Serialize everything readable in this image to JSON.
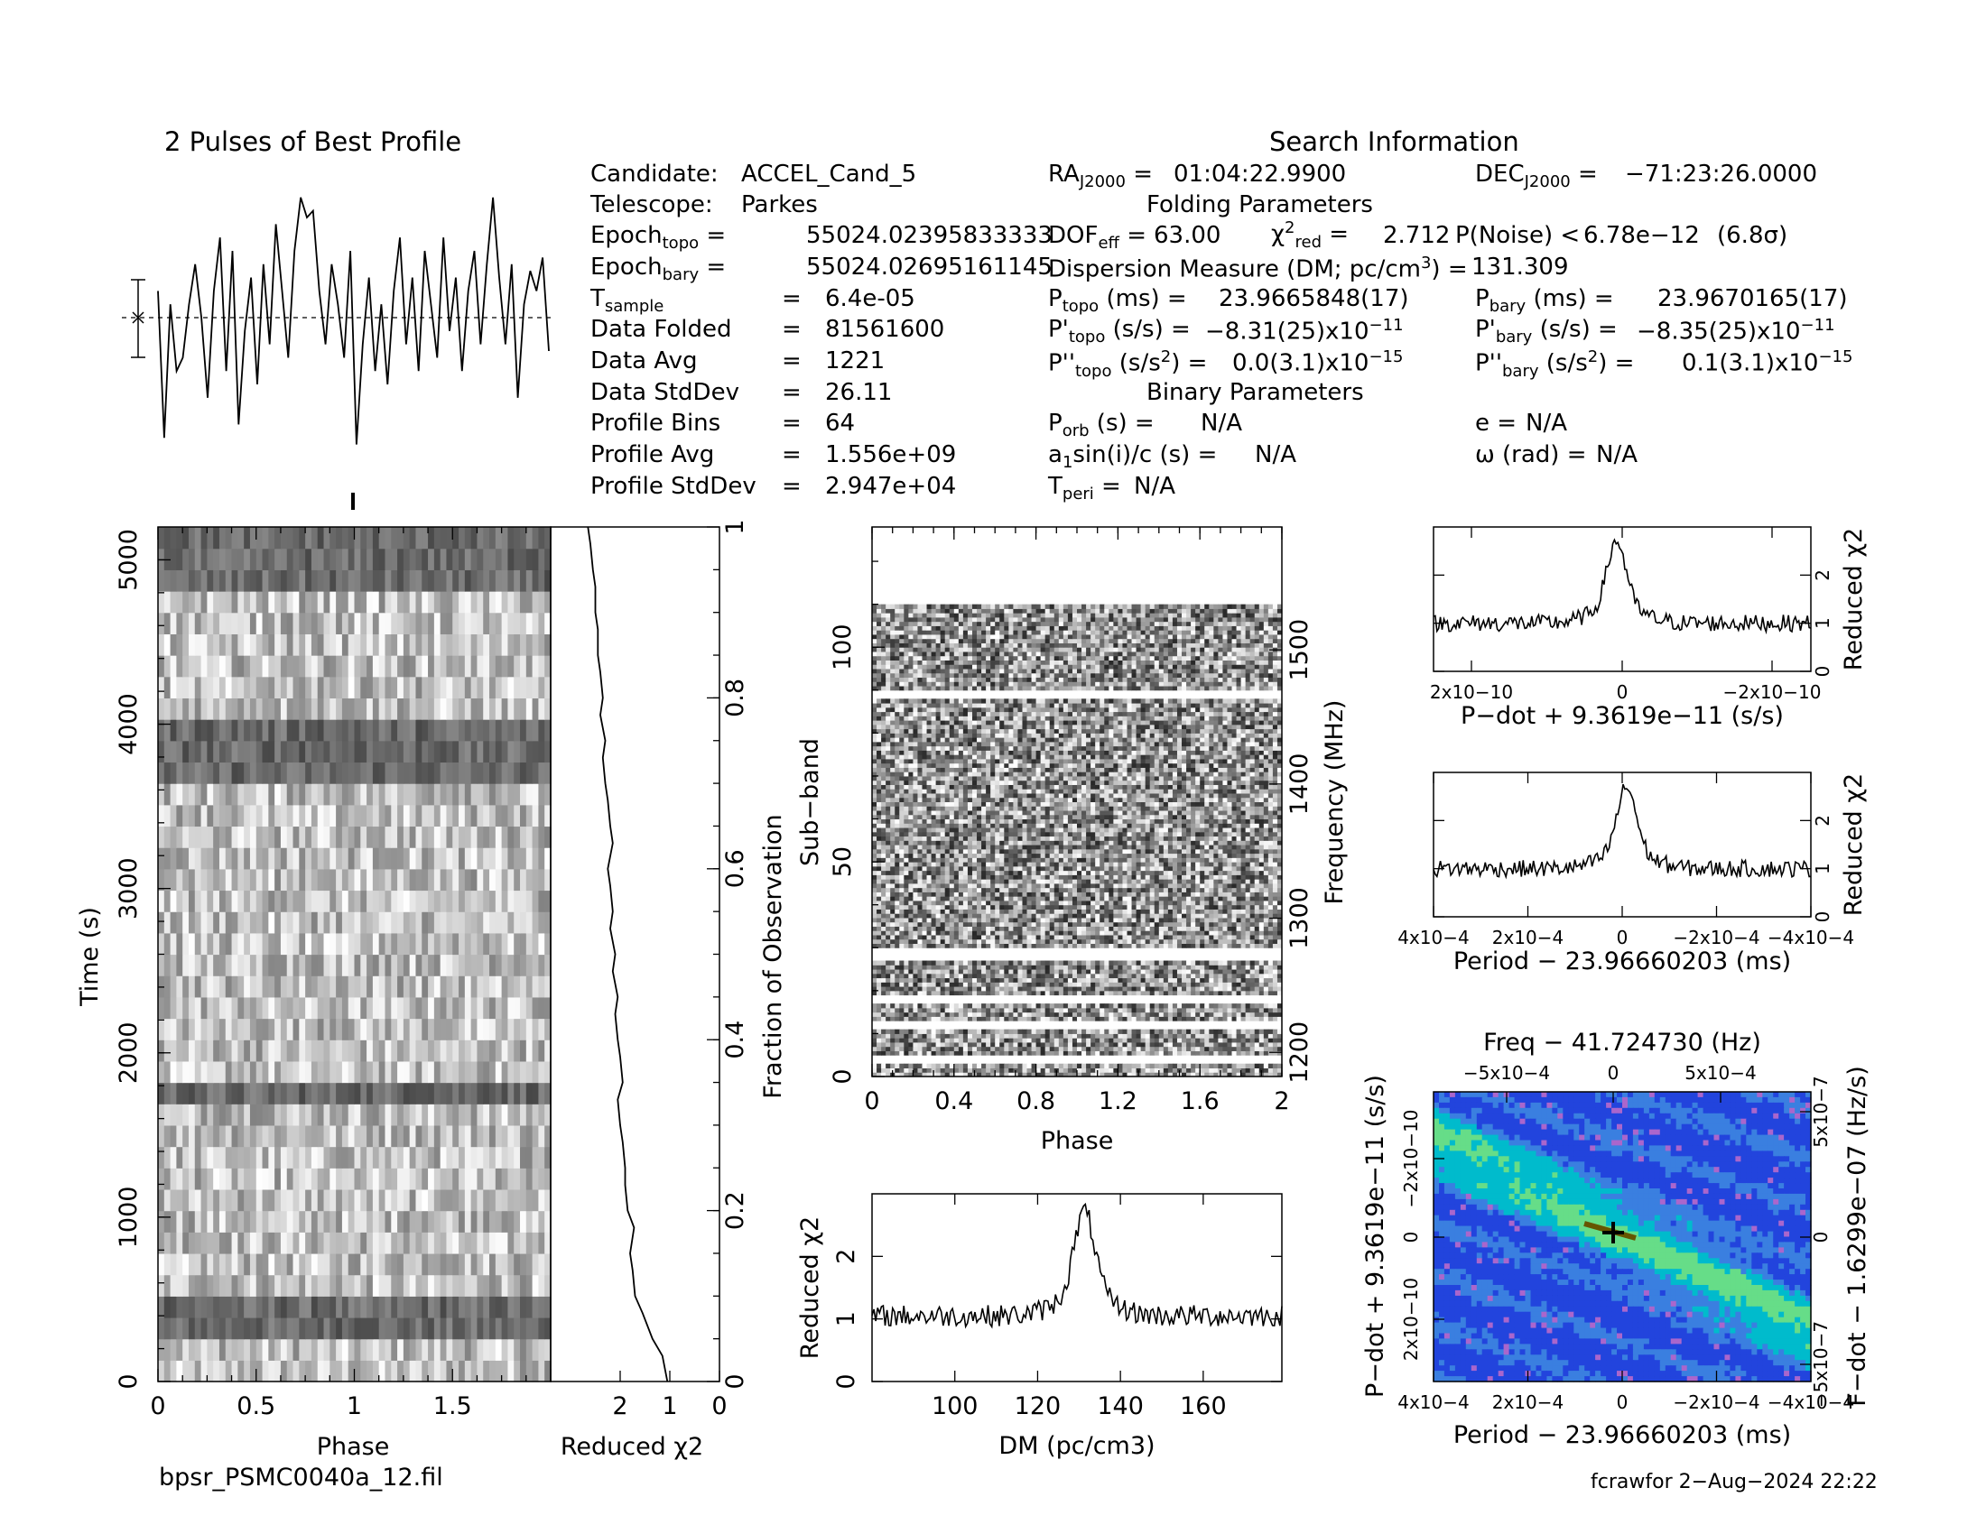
{
  "header": {
    "profile_title": "2 Pulses of Best Profile",
    "search_title": "Search Information",
    "folding_title": "Folding Parameters",
    "binary_title": "Binary Parameters"
  },
  "info": {
    "candidate_label": "Candidate:",
    "candidate": "ACCEL_Cand_5",
    "telescope_label": "Telescope:",
    "telescope": "Parkes",
    "epoch_topo": "55024.02395833333",
    "epoch_bary": "55024.02695161145",
    "tsample": "6.4e-05",
    "data_folded": "81561600",
    "data_avg": "1221",
    "data_stddev": "26.11",
    "profile_bins": "64",
    "profile_avg": "1.556e+09",
    "profile_stddev": "2.947e+04",
    "ra": "01:04:22.9900",
    "dec": "−71:23:26.0000",
    "dof_eff": "63.00",
    "chi2_red": "2.712",
    "p_noise": "6.78e−12",
    "sigma": "(6.8σ)",
    "dm": "131.309",
    "p_topo": "23.9665848(17)",
    "p_bary": "23.9670165(17)",
    "pd_topo": "−8.31(25)x10",
    "pd_topo_exp": "−11",
    "pd_bary": "−8.35(25)x10",
    "pd_bary_exp": "−11",
    "pdd_topo": "0.0(3.1)x10",
    "pdd_topo_exp": "−15",
    "pdd_bary": "0.1(3.1)x10",
    "pdd_bary_exp": "−15",
    "p_orb": "N/A",
    "e": "N/A",
    "a1sini": "N/A",
    "omega": "N/A",
    "t_peri": "N/A"
  },
  "footer": {
    "filename": "bpsr_PSMC0040a_12.fil",
    "user_date": "fcrawfor  2−Aug−2024 22:22"
  },
  "colors": {
    "ink": "#000000",
    "ppdot_low": "#2244dd",
    "ppdot_mid": "#00bbcc",
    "ppdot_high": "#66dd88",
    "ppdot_peak": "#665500"
  },
  "chart_data": [
    {
      "id": "profile",
      "type": "line",
      "title": "2 Pulses of Best Profile",
      "x": "phase 0–2 (64 bins, 2 pulses)",
      "values": [
        0.2,
        -0.9,
        0.1,
        -0.4,
        -0.3,
        0.1,
        0.4,
        0.0,
        -0.6,
        0.2,
        0.6,
        -0.4,
        0.5,
        -0.8,
        -0.1,
        0.3,
        -0.5,
        0.4,
        -0.2,
        0.7,
        0.2,
        -0.3,
        0.5,
        0.9,
        0.75,
        0.8,
        0.2,
        -0.2,
        0.4,
        0.1,
        -0.3,
        0.5,
        -0.95,
        -0.2,
        0.3,
        -0.4,
        0.1,
        -0.5,
        0.2,
        0.6,
        -0.2,
        0.3,
        -0.4,
        0.5,
        0.1,
        -0.3,
        0.6,
        -0.1,
        0.3,
        -0.4,
        0.2,
        0.5,
        -0.2,
        0.4,
        0.9,
        0.3,
        -0.2,
        0.4,
        -0.6,
        0.1,
        0.35,
        0.2,
        0.45,
        -0.25
      ]
    },
    {
      "id": "time-phase",
      "type": "heatmap",
      "xlabel": "Phase",
      "ylabel": "Time (s)",
      "x_ticks": [
        "0",
        "0.5",
        "1",
        "1.5"
      ],
      "y_ticks": [
        "0",
        "1000",
        "2000",
        "3000",
        "4000",
        "5000"
      ],
      "xlim": [
        0,
        2
      ],
      "ylim": [
        0,
        5200
      ],
      "rows": 40,
      "dark_rows": [
        2,
        3,
        13,
        28,
        29,
        30,
        37,
        38,
        39
      ]
    },
    {
      "id": "time-chi2",
      "type": "line",
      "xlabel": "Reduced χ2",
      "ylabel": "Fraction of Observation",
      "x_ticks": [
        "2",
        "1",
        "0"
      ],
      "y_ticks": [
        "0",
        "0.2",
        "0.4",
        "0.6",
        "0.8",
        "1"
      ],
      "y": [
        0.0,
        0.03,
        0.05,
        0.08,
        0.1,
        0.13,
        0.15,
        0.18,
        0.2,
        0.23,
        0.25,
        0.28,
        0.3,
        0.33,
        0.35,
        0.38,
        0.4,
        0.43,
        0.45,
        0.48,
        0.5,
        0.53,
        0.55,
        0.58,
        0.6,
        0.63,
        0.65,
        0.68,
        0.7,
        0.73,
        0.75,
        0.78,
        0.8,
        0.83,
        0.85,
        0.88,
        0.9,
        0.93,
        0.95,
        0.98,
        1.0
      ],
      "x": [
        1.05,
        1.15,
        1.35,
        1.55,
        1.7,
        1.75,
        1.8,
        1.72,
        1.85,
        1.9,
        1.9,
        1.95,
        2.0,
        2.05,
        1.95,
        2.0,
        2.05,
        2.1,
        2.05,
        2.15,
        2.1,
        2.2,
        2.15,
        2.2,
        2.25,
        2.15,
        2.2,
        2.25,
        2.3,
        2.35,
        2.3,
        2.4,
        2.35,
        2.4,
        2.45,
        2.45,
        2.5,
        2.5,
        2.55,
        2.6,
        2.65
      ]
    },
    {
      "id": "subband-phase",
      "type": "heatmap",
      "xlabel": "Phase",
      "ylabel": "Sub−band",
      "y2label": "Frequency (MHz)",
      "x_ticks": [
        "0",
        "0.4",
        "0.8",
        "1.2",
        "1.6",
        "2"
      ],
      "y_ticks": [
        "0",
        "50",
        "100"
      ],
      "y2_ticks": [
        "1200",
        "1300",
        "1400",
        "1500"
      ],
      "xlim": [
        0,
        2
      ],
      "ylim": [
        0,
        128
      ],
      "filled_subbands": 110,
      "blank_subbands": [
        3,
        4,
        11,
        12,
        17,
        18,
        27,
        28,
        29,
        88,
        89
      ]
    },
    {
      "id": "dm-chi2",
      "type": "line",
      "xlabel": "DM (pc/cm3)",
      "ylabel": "Reduced χ2",
      "x_ticks": [
        "100",
        "120",
        "140",
        "160"
      ],
      "y_ticks": [
        "0",
        "1",
        "2"
      ],
      "xlim": [
        80,
        179
      ],
      "ylim": [
        0,
        3
      ],
      "peak_x": 131.3,
      "peak_y": 2.71,
      "baseline": 1.05
    },
    {
      "id": "pdot-chi2",
      "type": "line",
      "xlabel": "P−dot + 9.3619e−11 (s/s)",
      "ylabel": "Reduced χ2",
      "x_ticks": [
        "2x10−10",
        "0",
        "−2x10−10"
      ],
      "y_ticks": [
        "0",
        "1",
        "2"
      ],
      "xlim": [
        3.3e-10,
        -3.3e-10
      ],
      "ylim": [
        0,
        3
      ],
      "peak_x": 1e-11,
      "peak_y": 2.7,
      "baseline": 1.0
    },
    {
      "id": "period-chi2",
      "type": "line",
      "xlabel": "Period − 23.96660203 (ms)",
      "ylabel": "Reduced χ2",
      "x_ticks": [
        "4x10−4",
        "2x10−4",
        "0",
        "−2x10−4",
        "−4x10−4"
      ],
      "y_ticks": [
        "0",
        "1",
        "2"
      ],
      "xlim": [
        0.00042,
        -0.00042
      ],
      "ylim": [
        0,
        3
      ],
      "peak_x": -1e-05,
      "peak_y": 2.7,
      "baseline": 1.0
    },
    {
      "id": "p-pdot",
      "type": "heatmap",
      "title": "Freq − 41.724730 (Hz)",
      "xlabel": "Period − 23.96660203 (ms)",
      "ylabel": "P−dot + 9.3619e−11 (s/s)",
      "y2label": "F−dot − 1.6299e−07 (Hz/s)",
      "x_ticks": [
        "4x10−4",
        "2x10−4",
        "0",
        "−2x10−4",
        "−4x10−4"
      ],
      "x2_ticks": [
        "−5x10−4",
        "0",
        "5x10−4"
      ],
      "y_ticks": [
        "−2x10−10",
        "0",
        "2x10−10"
      ],
      "y2_ticks": [
        "5x10−7",
        "0",
        "−5x10−7"
      ],
      "peak": [
        -1e-05,
        0
      ]
    }
  ]
}
